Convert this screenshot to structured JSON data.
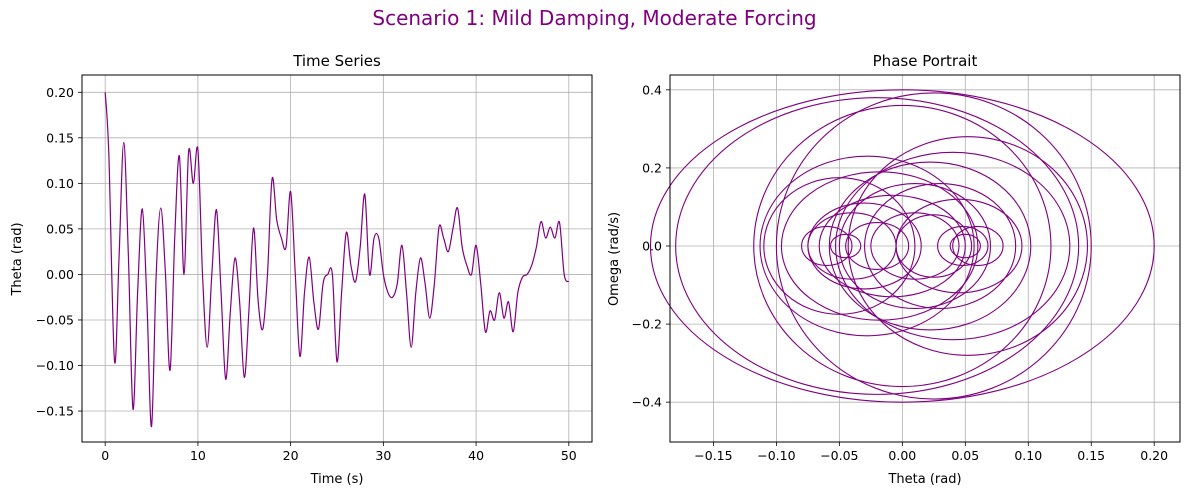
{
  "figure": {
    "title": "Scenario 1: Mild Damping, Moderate Forcing",
    "title_color": "#800080",
    "line_color": "#800080",
    "grid_color": "#b0b0b0"
  },
  "chart_data": [
    {
      "type": "line",
      "title": "Time Series",
      "xlabel": "Time (s)",
      "ylabel": "Theta (rad)",
      "xlim": [
        -2.5,
        52.5
      ],
      "ylim": [
        -0.184,
        0.219
      ],
      "xticks": [
        0,
        10,
        20,
        30,
        40,
        50
      ],
      "xtick_labels": [
        "0",
        "10",
        "20",
        "30",
        "40",
        "50"
      ],
      "yticks": [
        -0.15,
        -0.1,
        -0.05,
        0.0,
        0.05,
        0.1,
        0.15,
        0.2
      ],
      "ytick_labels": [
        "−0.15",
        "−0.10",
        "−0.05",
        "0.00",
        "0.05",
        "0.10",
        "0.15",
        "0.20"
      ],
      "grid": true,
      "series": [
        {
          "color": "#800080",
          "x": [
            0,
            0.4,
            1.0,
            1.5,
            2.0,
            2.5,
            3.0,
            3.5,
            4.0,
            4.5,
            5.0,
            5.5,
            6.0,
            6.5,
            7.0,
            7.5,
            8.0,
            8.5,
            9.0,
            9.5,
            10.0,
            10.5,
            11.0,
            11.5,
            12.0,
            12.5,
            13.0,
            13.5,
            14.0,
            14.5,
            15.0,
            15.5,
            16.0,
            16.5,
            17.0,
            17.5,
            18.0,
            18.5,
            19.0,
            19.5,
            20.0,
            20.5,
            21.0,
            21.5,
            22.0,
            22.5,
            23.0,
            23.5,
            24.0,
            24.5,
            25.0,
            25.5,
            26.0,
            26.5,
            27.0,
            27.5,
            28.0,
            28.5,
            29.0,
            29.5,
            30.0,
            30.5,
            31.0,
            31.5,
            32.0,
            32.5,
            33.0,
            33.5,
            34.0,
            34.5,
            35.0,
            35.5,
            36.0,
            36.5,
            37.0,
            37.5,
            38.0,
            38.5,
            39.0,
            39.5,
            40.0,
            40.5,
            41.0,
            41.5,
            42.0,
            42.5,
            43.0,
            43.5,
            44.0,
            44.5,
            45.0,
            45.5,
            46.0,
            46.5,
            47.0,
            47.5,
            48.0,
            48.5,
            49.0,
            49.5,
            50.0
          ],
          "y": [
            0.2,
            0.13,
            -0.095,
            0.02,
            0.145,
            0.02,
            -0.148,
            -0.02,
            0.072,
            -0.03,
            -0.167,
            0.0,
            0.073,
            0.0,
            -0.105,
            0.04,
            0.13,
            0.0,
            0.135,
            0.1,
            0.137,
            0.0,
            -0.08,
            0.0,
            0.071,
            -0.02,
            -0.115,
            -0.04,
            0.018,
            -0.03,
            -0.113,
            -0.04,
            0.051,
            -0.03,
            -0.06,
            0.0,
            0.105,
            0.06,
            0.04,
            0.03,
            0.091,
            0.0,
            -0.09,
            -0.02,
            0.019,
            -0.03,
            -0.06,
            -0.01,
            0.0,
            0.0,
            -0.096,
            -0.02,
            0.046,
            0.01,
            -0.008,
            0.03,
            0.088,
            0.0,
            0.04,
            0.04,
            0.0,
            -0.02,
            -0.025,
            -0.01,
            0.032,
            -0.02,
            -0.08,
            -0.02,
            0.018,
            -0.01,
            -0.048,
            -0.01,
            0.052,
            0.04,
            0.025,
            0.05,
            0.073,
            0.03,
            0.01,
            0.0,
            0.032,
            -0.01,
            -0.063,
            -0.04,
            -0.05,
            -0.02,
            -0.048,
            -0.03,
            -0.063,
            -0.02,
            -0.003,
            0.0,
            0.01,
            0.03,
            0.058,
            0.04,
            0.052,
            0.04,
            0.057,
            0.0,
            -0.008
          ]
        }
      ]
    },
    {
      "type": "line",
      "title": "Phase Portrait",
      "xlabel": "Theta (rad)",
      "ylabel": "Omega (rad/s)",
      "xlim": [
        -0.1845,
        0.2205
      ],
      "ylim": [
        -0.502,
        0.438
      ],
      "xticks": [
        -0.15,
        -0.1,
        -0.05,
        0.0,
        0.05,
        0.1,
        0.15,
        0.2
      ],
      "xtick_labels": [
        "−0.15",
        "−0.10",
        "−0.05",
        "0.00",
        "0.05",
        "0.10",
        "0.15",
        "0.20"
      ],
      "yticks": [
        -0.4,
        -0.2,
        0.0,
        0.2,
        0.4
      ],
      "ytick_labels": [
        "−0.4",
        "−0.2",
        "0.0",
        "0.2",
        "0.4"
      ],
      "grid": true,
      "series": [
        {
          "color": "#800080",
          "orbits": [
            {
              "cx": 0.0,
              "rx": 0.2,
              "ry": 0.4,
              "start": 0,
              "sweep": 1.0
            },
            {
              "cx": -0.02,
              "rx": 0.16,
              "ry": 0.38,
              "start": 0.5,
              "sweep": 1.0
            },
            {
              "cx": 0.0,
              "rx": 0.118,
              "ry": 0.36,
              "start": 0.3,
              "sweep": 1.0
            },
            {
              "cx": 0.025,
              "rx": 0.125,
              "ry": 0.392,
              "start": 0.0,
              "sweep": 1.0
            },
            {
              "cx": 0.052,
              "rx": 0.095,
              "ry": 0.28,
              "start": 0.0,
              "sweep": 1.0
            },
            {
              "cx": 0.04,
              "rx": 0.093,
              "ry": 0.24,
              "start": 0.0,
              "sweep": 1.0
            },
            {
              "cx": -0.028,
              "rx": 0.085,
              "ry": 0.23,
              "start": 0.0,
              "sweep": 1.0
            },
            {
              "cx": -0.018,
              "rx": 0.078,
              "ry": 0.19,
              "start": 0.0,
              "sweep": 1.0
            },
            {
              "cx": -0.05,
              "rx": 0.06,
              "ry": 0.175,
              "start": 0.0,
              "sweep": 1.0
            },
            {
              "cx": 0.022,
              "rx": 0.08,
              "ry": 0.215,
              "start": 0.0,
              "sweep": 1.0
            },
            {
              "cx": 0.03,
              "rx": 0.06,
              "ry": 0.16,
              "start": 0.0,
              "sweep": 1.0
            },
            {
              "cx": 0.045,
              "rx": 0.05,
              "ry": 0.12,
              "start": 0.0,
              "sweep": 1.0
            },
            {
              "cx": -0.04,
              "rx": 0.035,
              "ry": 0.085,
              "start": 0.0,
              "sweep": 1.0
            },
            {
              "cx": -0.03,
              "rx": 0.045,
              "ry": 0.11,
              "start": 0.0,
              "sweep": 1.0
            },
            {
              "cx": 0.025,
              "rx": 0.03,
              "ry": 0.08,
              "start": 0.0,
              "sweep": 1.0
            },
            {
              "cx": 0.048,
              "rx": 0.02,
              "ry": 0.05,
              "start": 0.0,
              "sweep": 1.0
            },
            {
              "cx": -0.045,
              "rx": 0.012,
              "ry": 0.03,
              "start": 0.0,
              "sweep": 1.0
            },
            {
              "cx": 0.05,
              "rx": 0.012,
              "ry": 0.03,
              "start": 0.0,
              "sweep": 1.0
            },
            {
              "cx": -0.02,
              "rx": 0.025,
              "ry": 0.06,
              "start": 0.0,
              "sweep": 1.0
            },
            {
              "cx": 0.01,
              "rx": 0.035,
              "ry": 0.085,
              "start": 0.0,
              "sweep": 1.0
            },
            {
              "cx": 0.06,
              "rx": 0.02,
              "ry": 0.05,
              "start": 0.0,
              "sweep": 1.0
            },
            {
              "cx": -0.06,
              "rx": 0.02,
              "ry": 0.05,
              "start": 0.0,
              "sweep": 1.0
            },
            {
              "cx": 0.01,
              "rx": 0.06,
              "ry": 0.16,
              "start": 0.0,
              "sweep": 1.0
            },
            {
              "cx": -0.008,
              "rx": 0.058,
              "ry": 0.13,
              "start": 0.0,
              "sweep": 1.0
            }
          ]
        }
      ]
    }
  ]
}
